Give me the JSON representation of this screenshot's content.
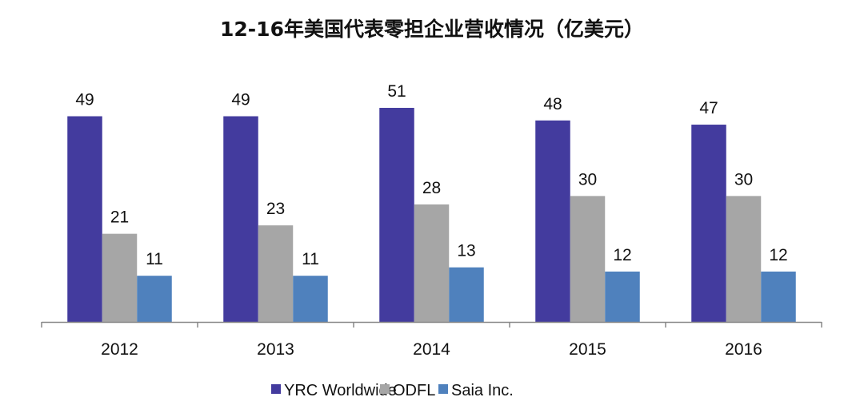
{
  "chart_data": {
    "type": "bar",
    "title": "12-16年美国代表零担企业营收情况（亿美元）",
    "xlabel": "",
    "ylabel": "",
    "categories": [
      "2012",
      "2013",
      "2014",
      "2015",
      "2016"
    ],
    "series": [
      {
        "name": "YRC Worldwide",
        "color": "#433B9E",
        "values": [
          49,
          49,
          51,
          48,
          47
        ]
      },
      {
        "name": "ODFL",
        "color": "#A6A6A6",
        "values": [
          21,
          23,
          28,
          30,
          30
        ]
      },
      {
        "name": "Saia Inc.",
        "color": "#4F81BD",
        "values": [
          11,
          11,
          13,
          12,
          12
        ]
      }
    ],
    "ylim": [
      0,
      55
    ],
    "grid": false,
    "legend": "bottom",
    "data_labels": true
  }
}
